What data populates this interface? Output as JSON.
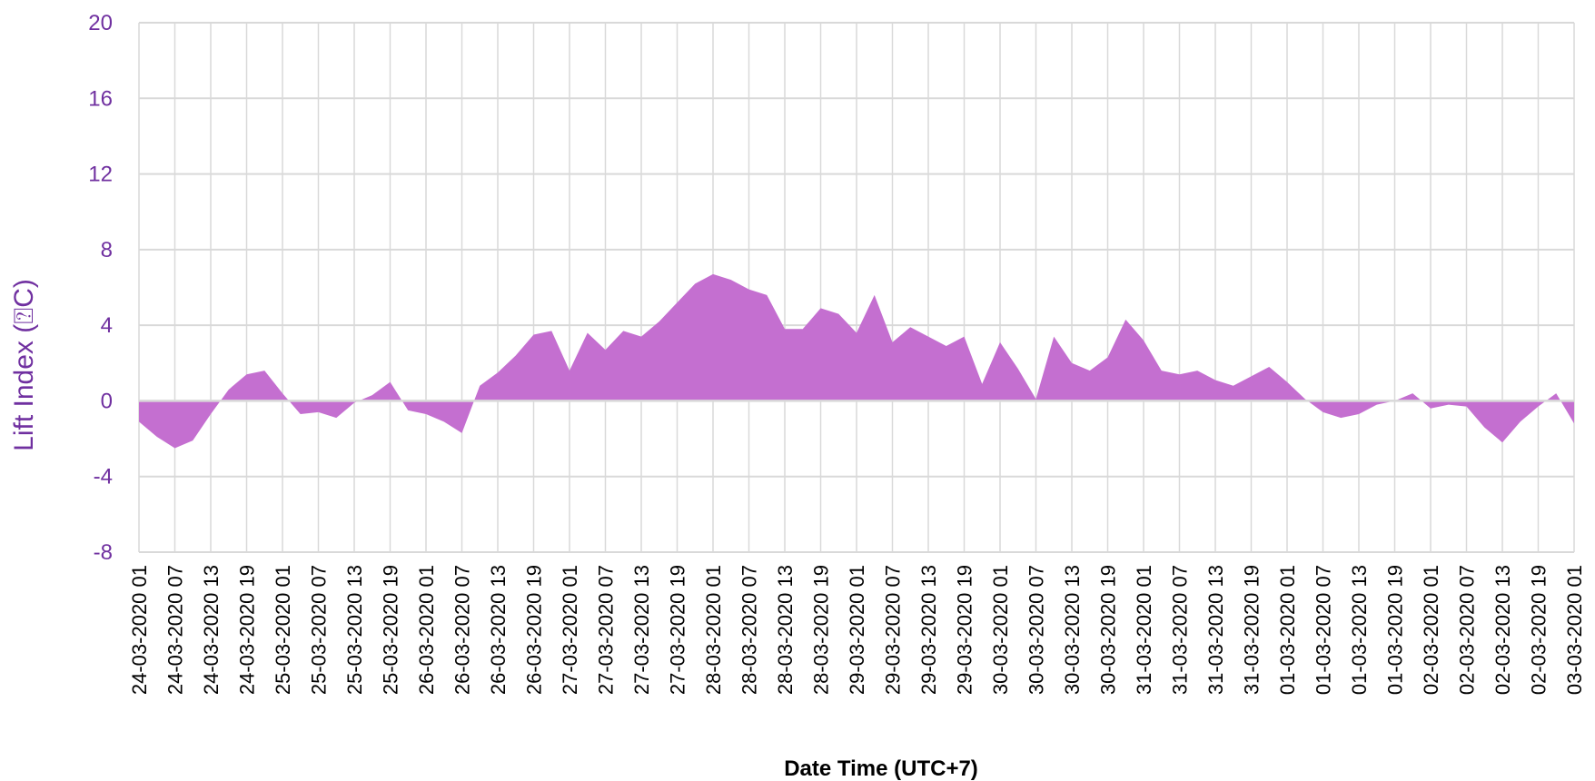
{
  "chart_data": {
    "type": "area",
    "xlabel": "Date Time (UTC+7)",
    "ylabel": "Lift Index (⍰C)",
    "ylim": [
      -8,
      20
    ],
    "yticks": [
      -8,
      -4,
      0,
      4,
      8,
      12,
      16,
      20
    ],
    "grid": true,
    "legend": "none",
    "colors": {
      "fill": "#c46fd0",
      "axis_text": "#7030a0",
      "grid": "#d9d9d9",
      "zero_line": "#d9d9d9"
    },
    "tick_labels": [
      "24-03-2020 01",
      "24-03-2020 07",
      "24-03-2020 13",
      "24-03-2020 19",
      "25-03-2020 01",
      "25-03-2020 07",
      "25-03-2020 13",
      "25-03-2020 19",
      "26-03-2020 01",
      "26-03-2020 07",
      "26-03-2020 13",
      "26-03-2020 19",
      "27-03-2020 01",
      "27-03-2020 07",
      "27-03-2020 13",
      "27-03-2020 19",
      "28-03-2020 01",
      "28-03-2020 07",
      "28-03-2020 13",
      "28-03-2020 19",
      "29-03-2020 01",
      "29-03-2020 07",
      "29-03-2020 13",
      "29-03-2020 19",
      "30-03-2020 01",
      "30-03-2020 07",
      "30-03-2020 13",
      "30-03-2020 19",
      "31-03-2020 01",
      "31-03-2020 07",
      "31-03-2020 13",
      "31-03-2020 19",
      "01-03-2020 01",
      "01-03-2020 07",
      "01-03-2020 13",
      "01-03-2020 19",
      "02-03-2020 01",
      "02-03-2020 07",
      "02-03-2020 13",
      "02-03-2020 19",
      "03-03-2020 01"
    ],
    "series": [
      {
        "values": [
          -1.1,
          -1.9,
          -2.5,
          -2.1,
          -0.7,
          0.6,
          1.4,
          1.6,
          0.4,
          -0.7,
          -0.6,
          -0.9,
          -0.1,
          0.3,
          1.0,
          -0.5,
          -0.7,
          -1.1,
          -1.7,
          0.8,
          1.5,
          2.4,
          3.5,
          3.7,
          1.6,
          3.6,
          2.7,
          3.7,
          3.4,
          4.2,
          5.2,
          6.2,
          6.7,
          6.4,
          5.9,
          5.6,
          3.8,
          3.8,
          4.9,
          4.6,
          3.6,
          5.6,
          3.1,
          3.9,
          3.4,
          2.9,
          3.4,
          0.9,
          3.1,
          1.7,
          0.1,
          3.4,
          2.0,
          1.6,
          2.3,
          4.3,
          3.2,
          1.6,
          1.4,
          1.6,
          1.1,
          0.8,
          1.3,
          1.8,
          1.0,
          0.1,
          -0.6,
          -0.9,
          -0.7,
          -0.2,
          0.0,
          0.4,
          -0.4,
          -0.2,
          -0.3,
          -1.4,
          -2.2,
          -1.1,
          -0.3,
          0.4,
          -1.2
        ]
      }
    ]
  }
}
